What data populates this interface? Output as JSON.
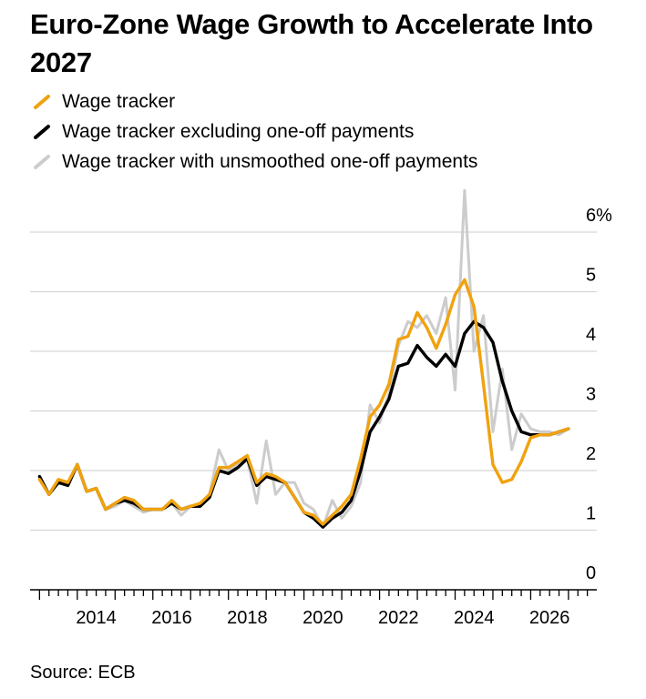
{
  "title": "Euro-Zone Wage Growth to Accelerate Into 2027",
  "source": "Source: ECB",
  "legend": [
    {
      "label": "Wage tracker",
      "color": "#f0a20f"
    },
    {
      "label": "Wage tracker excluding one-off payments",
      "color": "#000000"
    },
    {
      "label": "Wage tracker with unsmoothed one-off payments",
      "color": "#cccccc"
    }
  ],
  "chart_data": {
    "type": "line",
    "y_tick_labels": [
      "6%",
      "5",
      "4",
      "3",
      "2",
      "1",
      "0"
    ],
    "y_ticks": [
      6,
      5,
      4,
      3,
      2,
      1,
      0
    ],
    "x_tick_labels": [
      "2014",
      "2016",
      "2018",
      "2020",
      "2022",
      "2024",
      "2026"
    ],
    "x_ticks": [
      2014,
      2016,
      2018,
      2020,
      2022,
      2024,
      2026
    ],
    "xlim": [
      2012.75,
      2027.75
    ],
    "ylim": [
      0,
      6
    ],
    "grid": true,
    "legend_position": "top-left",
    "x": [
      2013,
      2013.25,
      2013.5,
      2013.75,
      2014,
      2014.25,
      2014.5,
      2014.75,
      2015,
      2015.25,
      2015.5,
      2015.75,
      2016,
      2016.25,
      2016.5,
      2016.75,
      2017,
      2017.25,
      2017.5,
      2017.75,
      2018,
      2018.25,
      2018.5,
      2018.75,
      2019,
      2019.25,
      2019.5,
      2019.75,
      2020,
      2020.25,
      2020.5,
      2020.75,
      2021,
      2021.25,
      2021.5,
      2021.75,
      2022,
      2022.25,
      2022.5,
      2022.75,
      2023,
      2023.25,
      2023.5,
      2023.75,
      2024,
      2024.25,
      2024.5,
      2024.75,
      2025,
      2025.25,
      2025.5,
      2025.75,
      2026,
      2026.25,
      2026.5,
      2026.75,
      2027
    ],
    "series": [
      {
        "name": "Wage tracker with unsmoothed one-off payments",
        "color": "#cccccc",
        "values": [
          1.85,
          1.6,
          1.8,
          1.75,
          2.1,
          1.65,
          1.7,
          1.35,
          1.4,
          1.5,
          1.4,
          1.3,
          1.35,
          1.35,
          1.45,
          1.25,
          1.4,
          1.4,
          1.6,
          2.35,
          2.0,
          2.1,
          2.2,
          1.45,
          2.5,
          1.6,
          1.8,
          1.8,
          1.45,
          1.35,
          1.05,
          1.5,
          1.2,
          1.4,
          1.8,
          3.1,
          2.8,
          3.3,
          4.1,
          4.5,
          4.4,
          4.6,
          4.3,
          4.9,
          3.35,
          6.7,
          4.0,
          4.6,
          2.65,
          3.7,
          2.35,
          2.95,
          2.7,
          2.65,
          2.65,
          2.6,
          2.7
        ]
      },
      {
        "name": "Wage tracker excluding one-off payments",
        "color": "#000000",
        "values": [
          1.9,
          1.6,
          1.8,
          1.75,
          2.1,
          1.65,
          1.7,
          1.35,
          1.45,
          1.5,
          1.45,
          1.35,
          1.35,
          1.35,
          1.45,
          1.35,
          1.4,
          1.4,
          1.55,
          2.0,
          1.95,
          2.05,
          2.2,
          1.75,
          1.9,
          1.85,
          1.8,
          1.55,
          1.3,
          1.2,
          1.05,
          1.2,
          1.3,
          1.5,
          2.0,
          2.65,
          2.9,
          3.2,
          3.75,
          3.8,
          4.1,
          3.9,
          3.75,
          3.95,
          3.75,
          4.3,
          4.5,
          4.4,
          4.15,
          3.5,
          3.0,
          2.65,
          2.6,
          2.6,
          2.6,
          2.65,
          2.7
        ]
      },
      {
        "name": "Wage tracker",
        "color": "#f0a20f",
        "values": [
          1.85,
          1.6,
          1.85,
          1.8,
          2.1,
          1.65,
          1.7,
          1.35,
          1.45,
          1.55,
          1.5,
          1.35,
          1.35,
          1.35,
          1.5,
          1.35,
          1.4,
          1.45,
          1.6,
          2.05,
          2.05,
          2.15,
          2.25,
          1.8,
          1.95,
          1.9,
          1.8,
          1.55,
          1.3,
          1.25,
          1.1,
          1.25,
          1.4,
          1.6,
          2.2,
          2.9,
          3.1,
          3.45,
          4.2,
          4.25,
          4.65,
          4.4,
          4.05,
          4.45,
          4.95,
          5.2,
          4.75,
          3.45,
          2.1,
          1.8,
          1.85,
          2.15,
          2.55,
          2.6,
          2.6,
          2.65,
          2.7
        ]
      }
    ]
  }
}
